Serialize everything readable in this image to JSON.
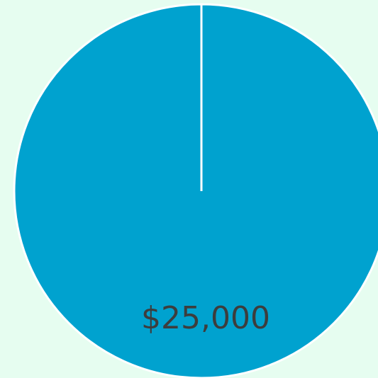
{
  "chart_data": {
    "type": "pie",
    "values": [
      25000
    ],
    "value_labels": [
      "$25,000"
    ],
    "colors": [
      "#00a2cf"
    ]
  }
}
